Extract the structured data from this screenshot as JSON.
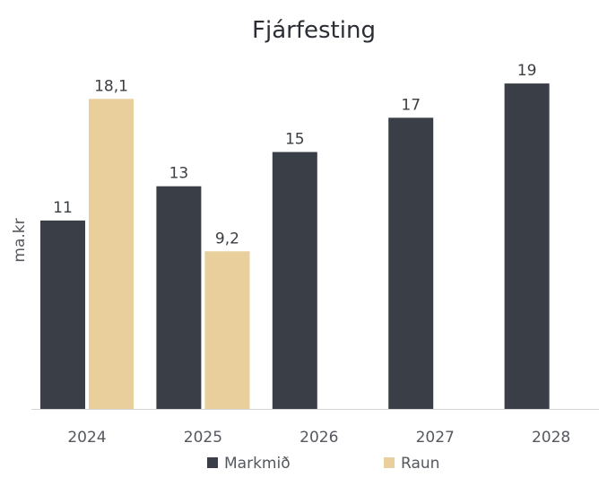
{
  "chart_data": {
    "type": "bar",
    "title": "Fjárfesting",
    "ylabel": "ma.kr",
    "xlabel": "",
    "categories": [
      "2024",
      "2025",
      "2026",
      "2027",
      "2028"
    ],
    "ylim": [
      0,
      20
    ],
    "grid": false,
    "legend_position": "bottom",
    "series": [
      {
        "name": "Markmið",
        "color": "#3a3f47",
        "values": [
          11,
          13,
          15,
          17,
          19
        ],
        "labels": [
          "11",
          "13",
          "15",
          "17",
          "19"
        ]
      },
      {
        "name": "Raun",
        "color": "#e8cf9b",
        "values": [
          18.1,
          9.2,
          null,
          null,
          null
        ],
        "labels": [
          "18,1",
          "9,2",
          "",
          "",
          ""
        ]
      }
    ]
  }
}
